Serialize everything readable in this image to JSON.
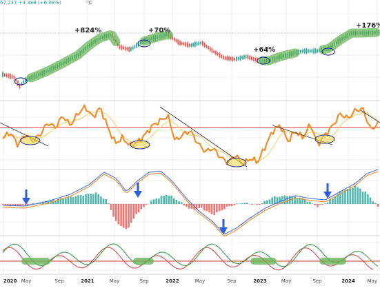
{
  "header": {
    "ticker_fragment": "TC",
    "price_fragment": "67,237",
    "change": "+4,388 (+6.98%)"
  },
  "chart_data": [
    {
      "type": "line",
      "panel": "price",
      "x_axis": [
        "2020",
        "May",
        "Sep",
        "2021",
        "May",
        "Sep",
        "2022",
        "May",
        "Sep",
        "2023",
        "May",
        "Sep",
        "2024",
        "May"
      ],
      "annotations": [
        "+824%",
        "+70%",
        "+64%",
        "+176%"
      ],
      "highlight_color": "#69b45a",
      "grid": true
    },
    {
      "type": "line",
      "panel": "oscillator",
      "series_colors": {
        "main": "#f28c28",
        "signal": "#f2d16b",
        "threshold": "#e03a3a",
        "trendlines": "#333333"
      }
    },
    {
      "type": "bar",
      "panel": "macd",
      "series_colors": {
        "positive": "#26a69a",
        "negative": "#ef5350",
        "macd": "#4a6fe3",
        "signal": "#f28c28",
        "arrows": "#2e5fd8"
      }
    },
    {
      "type": "line",
      "panel": "stochastic",
      "series_colors": {
        "k": "#3b9c4a",
        "d": "#d94b4b",
        "threshold": "#c0392b",
        "highlight": "#69b45a"
      }
    }
  ]
}
